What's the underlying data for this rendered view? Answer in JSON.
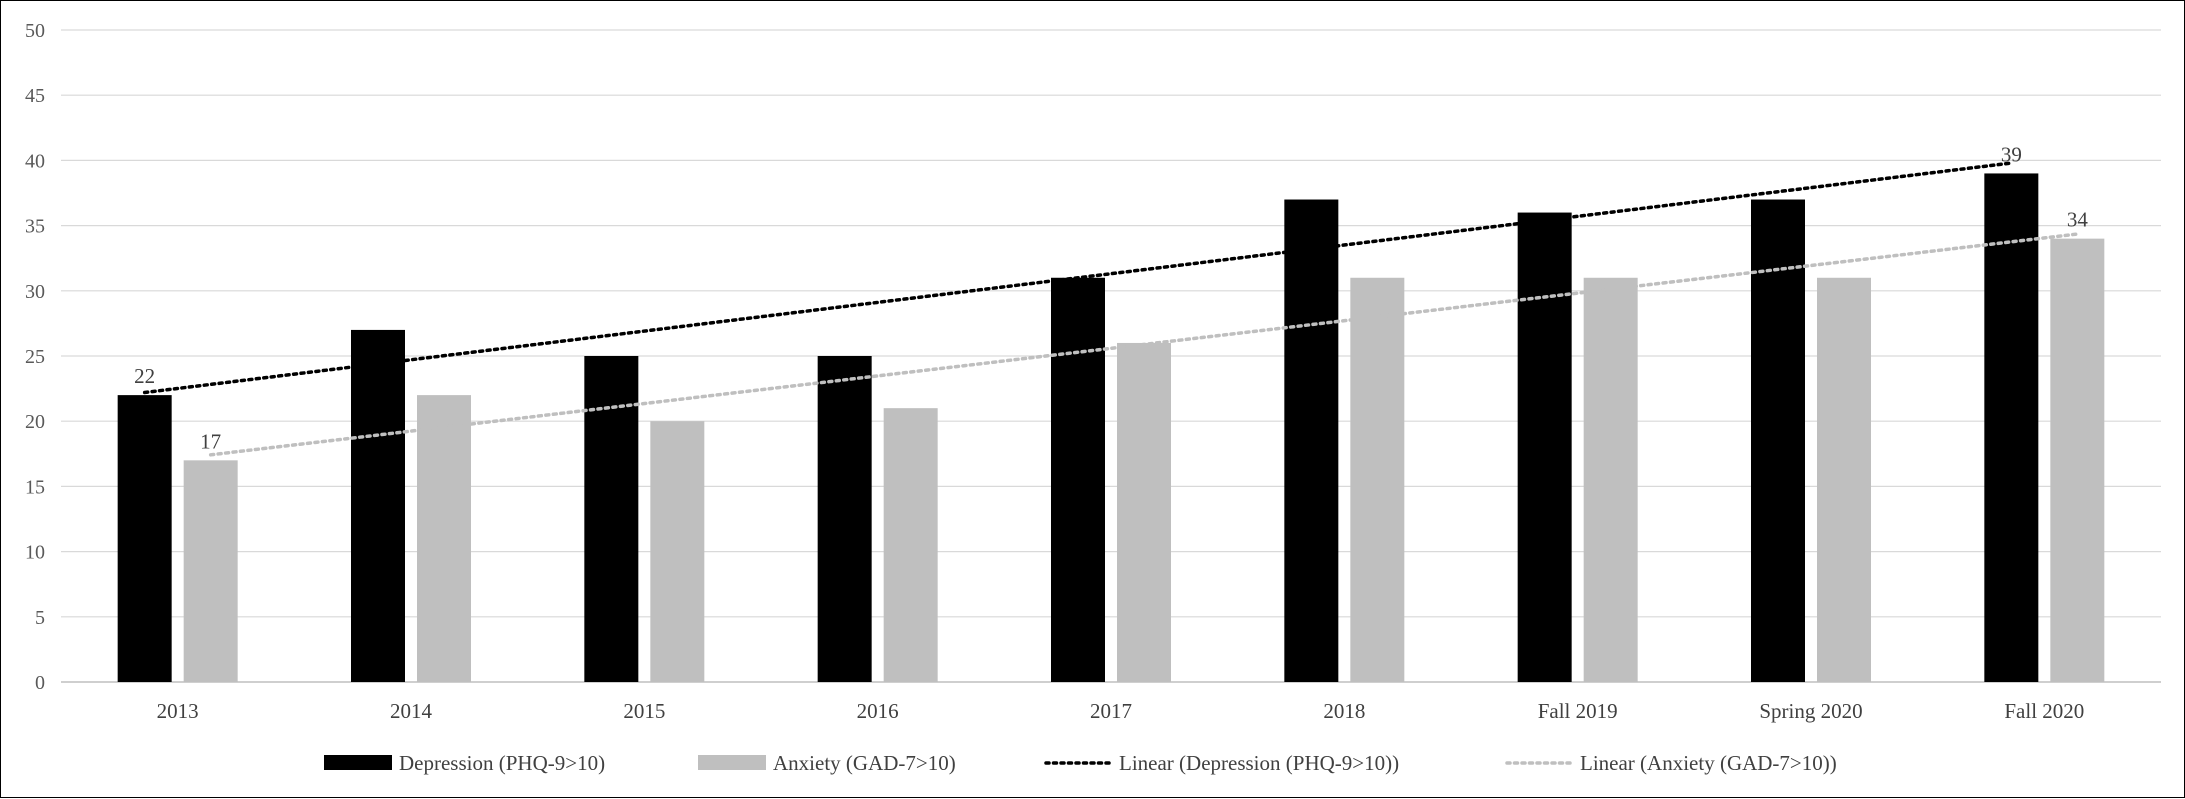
{
  "chart_data": {
    "type": "bar",
    "categories": [
      "2013",
      "2014",
      "2015",
      "2016",
      "2017",
      "2018",
      "Fall 2019",
      "Spring 2020",
      "Fall 2020"
    ],
    "series": [
      {
        "name": "Depression (PHQ-9>10)",
        "values": [
          22,
          27,
          25,
          25,
          31,
          37,
          36,
          37,
          39
        ],
        "color": "#000000"
      },
      {
        "name": "Anxiety (GAD-7>10)",
        "values": [
          17,
          22,
          20,
          21,
          26,
          31,
          31,
          31,
          34
        ],
        "color": "#bfbfbf"
      }
    ],
    "trendlines": [
      {
        "name": "Linear (Depression (PHQ-9>10))",
        "type": "linear",
        "of_series": 0,
        "color": "#000000",
        "style": "dotted"
      },
      {
        "name": "Linear (Anxiety (GAD-7>10))",
        "type": "linear",
        "of_series": 1,
        "color": "#bfbfbf",
        "style": "dotted"
      }
    ],
    "data_labels": [
      {
        "series": 0,
        "index": 0,
        "text": "22"
      },
      {
        "series": 1,
        "index": 0,
        "text": "17"
      },
      {
        "series": 0,
        "index": 8,
        "text": "39"
      },
      {
        "series": 1,
        "index": 8,
        "text": "34"
      }
    ],
    "y_ticks": [
      "0",
      "5",
      "10",
      "15",
      "20",
      "25",
      "30",
      "35",
      "40",
      "45",
      "50"
    ],
    "ylim": [
      0,
      50
    ],
    "grid": true,
    "legend_position": "bottom",
    "title": "",
    "xlabel": "",
    "ylabel": ""
  }
}
